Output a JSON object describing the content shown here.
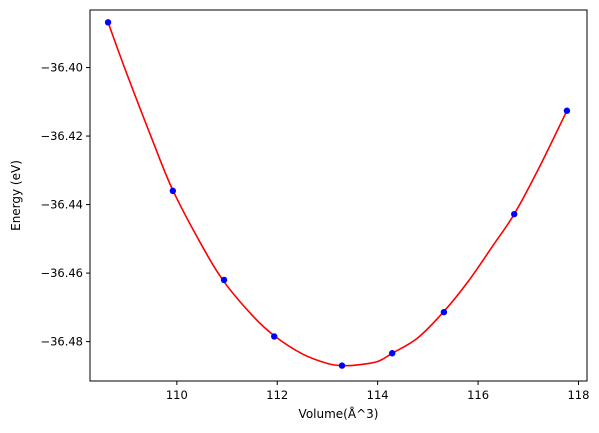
{
  "chart_data": {
    "type": "scatter",
    "title": "",
    "xlabel": "Volume(Å^3)",
    "ylabel": "Energy (eV)",
    "xlim": [
      108.27,
      118.17
    ],
    "ylim": [
      -36.4915,
      -36.3832
    ],
    "xticks": [
      110,
      112,
      114,
      116,
      118
    ],
    "yticks": [
      -36.4,
      -36.42,
      -36.44,
      -36.46,
      -36.48
    ],
    "xtick_labels": [
      "110",
      "112",
      "114",
      "116",
      "118"
    ],
    "ytick_labels": [
      "−36.40",
      "−36.42",
      "−36.44",
      "−36.46",
      "−36.48"
    ],
    "grid": false,
    "series": [
      {
        "kind": "points",
        "color": "#0000ff",
        "x": [
          108.63,
          109.92,
          110.94,
          111.94,
          113.29,
          114.29,
          115.32,
          116.72,
          117.77
        ],
        "y": [
          -36.3868,
          -36.436,
          -36.462,
          -36.4785,
          -36.487,
          -36.4834,
          -36.4714,
          -36.4428,
          -36.4126
        ]
      },
      {
        "kind": "fit-curve",
        "color": "#ff0000",
        "x": [
          108.63,
          109.0,
          109.5,
          109.92,
          110.5,
          110.94,
          111.5,
          111.94,
          112.5,
          113.0,
          113.29,
          113.6,
          114.0,
          114.29,
          114.8,
          115.32,
          115.8,
          116.3,
          116.72,
          117.2,
          117.77
        ],
        "y": [
          -36.3868,
          -36.4017,
          -36.4207,
          -36.4358,
          -36.452,
          -36.4625,
          -36.4723,
          -36.4783,
          -36.4836,
          -36.4864,
          -36.487,
          -36.4868,
          -36.4858,
          -36.4834,
          -36.4789,
          -36.4712,
          -36.4625,
          -36.4519,
          -36.4428,
          -36.4297,
          -36.4126
        ]
      }
    ]
  }
}
